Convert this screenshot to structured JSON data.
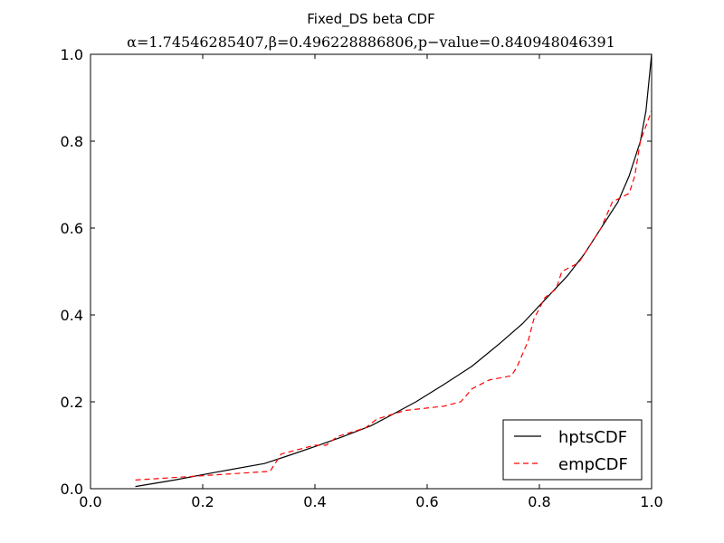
{
  "chart_data": {
    "type": "line",
    "title": "Fixed_DS beta CDF",
    "subtitle": "α=1.74546285407,β=0.496228886806,p−value=0.840948046391",
    "xlabel": "",
    "ylabel": "",
    "xlim": [
      0.0,
      1.0
    ],
    "ylim": [
      0.0,
      1.0
    ],
    "xticks": [
      "0.0",
      "0.2",
      "0.4",
      "0.6",
      "0.8",
      "1.0"
    ],
    "yticks": [
      "0.0",
      "0.2",
      "0.4",
      "0.6",
      "0.8",
      "1.0"
    ],
    "grid": false,
    "legend_position": "bottom-right",
    "series": [
      {
        "name": "hptsCDF",
        "color": "#000000",
        "style": "solid",
        "x": [
          0.08,
          0.15,
          0.22,
          0.31,
          0.35,
          0.4,
          0.45,
          0.5,
          0.54,
          0.58,
          0.63,
          0.68,
          0.73,
          0.77,
          0.81,
          0.85,
          0.88,
          0.91,
          0.94,
          0.96,
          0.98,
          0.99,
          1.0
        ],
        "y": [
          0.005,
          0.02,
          0.037,
          0.058,
          0.075,
          0.097,
          0.12,
          0.145,
          0.172,
          0.2,
          0.24,
          0.282,
          0.335,
          0.38,
          0.435,
          0.49,
          0.54,
          0.6,
          0.66,
          0.72,
          0.8,
          0.87,
          1.0
        ]
      },
      {
        "name": "empCDF",
        "color": "#ff0000",
        "style": "dashed",
        "x": [
          0.08,
          0.2,
          0.32,
          0.34,
          0.4,
          0.42,
          0.44,
          0.49,
          0.51,
          0.56,
          0.63,
          0.66,
          0.68,
          0.71,
          0.75,
          0.76,
          0.78,
          0.79,
          0.81,
          0.83,
          0.84,
          0.87,
          0.89,
          0.91,
          0.93,
          0.96,
          0.97,
          0.98,
          1.0
        ],
        "y": [
          0.02,
          0.03,
          0.04,
          0.08,
          0.1,
          0.1,
          0.12,
          0.14,
          0.16,
          0.18,
          0.19,
          0.2,
          0.23,
          0.25,
          0.26,
          0.28,
          0.34,
          0.39,
          0.44,
          0.46,
          0.5,
          0.52,
          0.56,
          0.6,
          0.66,
          0.68,
          0.72,
          0.8,
          0.87
        ]
      }
    ]
  }
}
